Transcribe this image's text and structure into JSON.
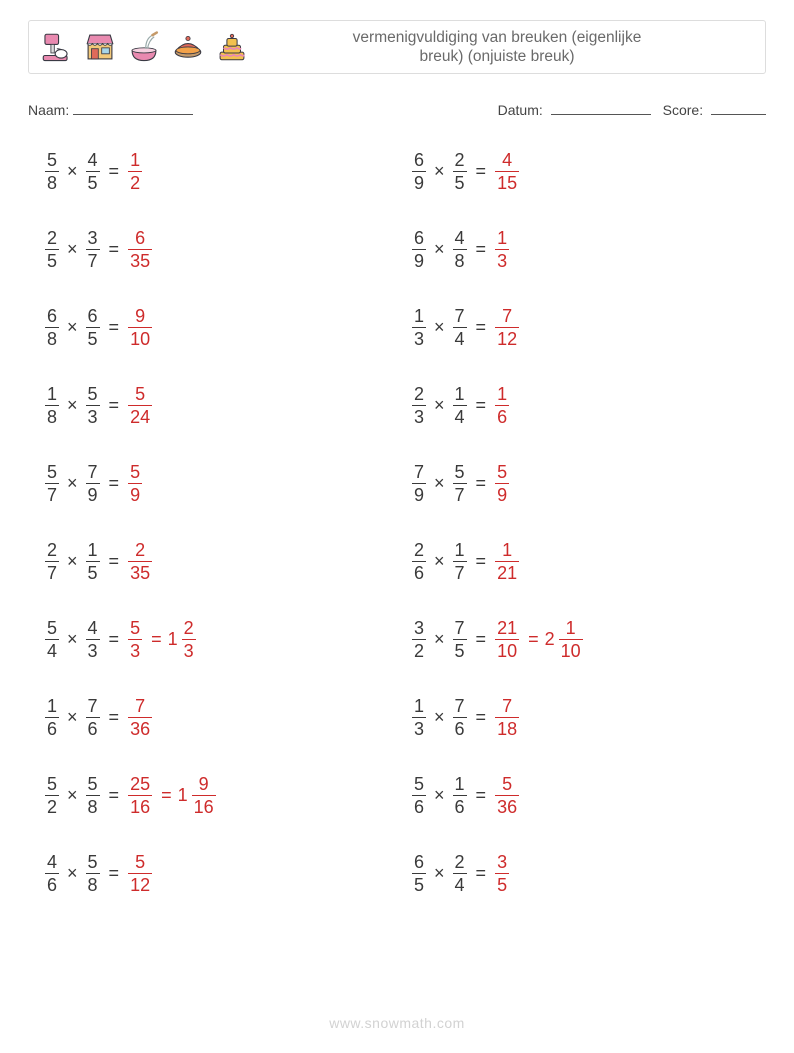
{
  "header": {
    "title_line1": "vermenigvuldiging van breuken (eigenlijke",
    "title_line2": "breuk) (onjuiste breuk)",
    "icon_names": [
      "mixer-icon",
      "shop-icon",
      "bowl-icon",
      "pie-icon",
      "cake-icon"
    ]
  },
  "colors": {
    "text": "#3a3a3a",
    "answer": "#ce2b2b",
    "header_text": "#6a6a6a",
    "header_border": "#dddddd",
    "blank_line": "#555555",
    "watermark": "#d2d2d2",
    "icon_pink": "#e98ab0",
    "icon_orange": "#f3a24a",
    "icon_red": "#e06a5a",
    "icon_yellow": "#f2c14e",
    "icon_stroke": "#3a3a44"
  },
  "labels": {
    "name": "Naam:",
    "date": "Datum:",
    "score": "Score:"
  },
  "watermark": "www.snowmath.com",
  "fontsize_problem": 18,
  "fontsize_label": 14,
  "fontsize_title": 15.5,
  "problems_left": [
    {
      "a": [
        5,
        8
      ],
      "b": [
        4,
        5
      ],
      "ans": [
        [
          1,
          2
        ]
      ]
    },
    {
      "a": [
        2,
        5
      ],
      "b": [
        3,
        7
      ],
      "ans": [
        [
          6,
          35
        ]
      ]
    },
    {
      "a": [
        6,
        8
      ],
      "b": [
        6,
        5
      ],
      "ans": [
        [
          9,
          10
        ]
      ]
    },
    {
      "a": [
        1,
        8
      ],
      "b": [
        5,
        3
      ],
      "ans": [
        [
          5,
          24
        ]
      ]
    },
    {
      "a": [
        5,
        7
      ],
      "b": [
        7,
        9
      ],
      "ans": [
        [
          5,
          9
        ]
      ]
    },
    {
      "a": [
        2,
        7
      ],
      "b": [
        1,
        5
      ],
      "ans": [
        [
          2,
          35
        ]
      ]
    },
    {
      "a": [
        5,
        4
      ],
      "b": [
        4,
        3
      ],
      "ans": [
        [
          5,
          3
        ],
        [
          1,
          2,
          3
        ]
      ]
    },
    {
      "a": [
        1,
        6
      ],
      "b": [
        7,
        6
      ],
      "ans": [
        [
          7,
          36
        ]
      ]
    },
    {
      "a": [
        5,
        2
      ],
      "b": [
        5,
        8
      ],
      "ans": [
        [
          25,
          16
        ],
        [
          1,
          9,
          16
        ]
      ]
    },
    {
      "a": [
        4,
        6
      ],
      "b": [
        5,
        8
      ],
      "ans": [
        [
          5,
          12
        ]
      ]
    }
  ],
  "problems_right": [
    {
      "a": [
        6,
        9
      ],
      "b": [
        2,
        5
      ],
      "ans": [
        [
          4,
          15
        ]
      ]
    },
    {
      "a": [
        6,
        9
      ],
      "b": [
        4,
        8
      ],
      "ans": [
        [
          1,
          3
        ]
      ]
    },
    {
      "a": [
        1,
        3
      ],
      "b": [
        7,
        4
      ],
      "ans": [
        [
          7,
          12
        ]
      ]
    },
    {
      "a": [
        2,
        3
      ],
      "b": [
        1,
        4
      ],
      "ans": [
        [
          1,
          6
        ]
      ]
    },
    {
      "a": [
        7,
        9
      ],
      "b": [
        5,
        7
      ],
      "ans": [
        [
          5,
          9
        ]
      ]
    },
    {
      "a": [
        2,
        6
      ],
      "b": [
        1,
        7
      ],
      "ans": [
        [
          1,
          21
        ]
      ]
    },
    {
      "a": [
        3,
        2
      ],
      "b": [
        7,
        5
      ],
      "ans": [
        [
          21,
          10
        ],
        [
          2,
          1,
          10
        ]
      ]
    },
    {
      "a": [
        1,
        3
      ],
      "b": [
        7,
        6
      ],
      "ans": [
        [
          7,
          18
        ]
      ]
    },
    {
      "a": [
        5,
        6
      ],
      "b": [
        1,
        6
      ],
      "ans": [
        [
          5,
          36
        ]
      ]
    },
    {
      "a": [
        6,
        5
      ],
      "b": [
        2,
        4
      ],
      "ans": [
        [
          3,
          5
        ]
      ]
    }
  ]
}
